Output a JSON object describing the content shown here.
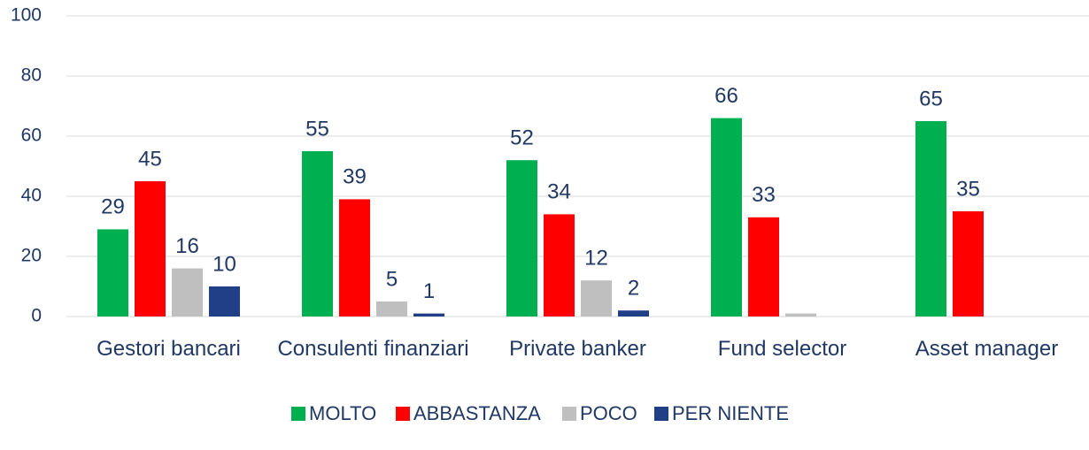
{
  "chart_data": {
    "type": "bar",
    "categories": [
      "Gestori bancari",
      "Consulenti finanziari",
      "Private banker",
      "Fund selector",
      "Asset manager"
    ],
    "series": [
      {
        "name": "MOLTO",
        "color": "#00b050",
        "values": [
          29,
          55,
          52,
          66,
          65
        ]
      },
      {
        "name": "ABBASTANZA",
        "color": "#ff0000",
        "values": [
          45,
          39,
          34,
          33,
          35
        ]
      },
      {
        "name": "POCO",
        "color": "#bfbfbf",
        "values": [
          16,
          5,
          12,
          1,
          null
        ],
        "value_labels": [
          "16",
          "5",
          "12",
          null,
          null
        ]
      },
      {
        "name": "PER NIENTE",
        "color": "#203f86",
        "values": [
          10,
          1,
          2,
          null,
          null
        ]
      }
    ],
    "ylim": [
      0,
      100
    ],
    "yticks": [
      0,
      20,
      40,
      60,
      80,
      100
    ],
    "grid": true,
    "legend": "bottom"
  }
}
